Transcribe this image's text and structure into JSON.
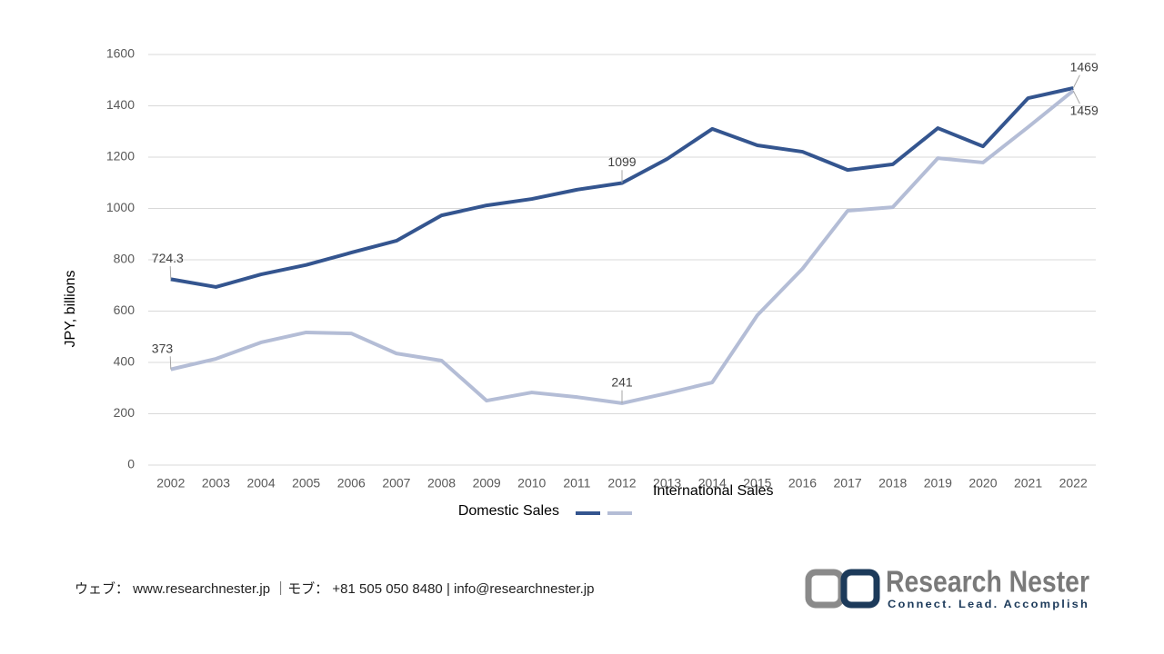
{
  "chart_data": {
    "type": "line",
    "y_axis_label": "JPY, billions",
    "categories": [
      "2002",
      "2003",
      "2004",
      "2005",
      "2006",
      "2007",
      "2008",
      "2009",
      "2010",
      "2011",
      "2012",
      "2013",
      "2014",
      "2015",
      "2016",
      "2017",
      "2018",
      "2019",
      "2020",
      "2021",
      "2022"
    ],
    "series": [
      {
        "name": "Domestic Sales",
        "color": "#34558f",
        "values": [
          724.3,
          694,
          743,
          780,
          828,
          874,
          973,
          1012,
          1037,
          1073,
          1099,
          1193,
          1310,
          1246,
          1221,
          1150,
          1172,
          1313,
          1242,
          1430,
          1469
        ],
        "value_labels": [
          "724.3",
          null,
          null,
          null,
          null,
          null,
          null,
          null,
          null,
          null,
          "1099",
          null,
          null,
          null,
          null,
          null,
          null,
          null,
          null,
          null,
          "1469"
        ]
      },
      {
        "name": "International Sales",
        "color": "#b4bdd6",
        "values": [
          373,
          414,
          478,
          517,
          513,
          435,
          407,
          251,
          283,
          265,
          241,
          280,
          322,
          584,
          765,
          991,
          1005,
          1196,
          1179,
          1317,
          1459
        ],
        "value_labels": [
          "373",
          null,
          null,
          null,
          null,
          null,
          null,
          null,
          null,
          null,
          "241",
          null,
          null,
          null,
          null,
          null,
          null,
          null,
          null,
          null,
          "1459"
        ]
      }
    ],
    "ylim": [
      0,
      1600
    ],
    "yticks": [
      0,
      200,
      400,
      600,
      800,
      1000,
      1200,
      1400,
      1600
    ],
    "grid": true,
    "legend": "bottom"
  },
  "footer": {
    "text": "ウェブ： www.researchnester.jp ｜モブ： +81 505 050 8480 | info@researchnester.jp"
  },
  "logo": {
    "name": "Research Nester",
    "tagline": "Connect. Lead. Accomplish"
  }
}
